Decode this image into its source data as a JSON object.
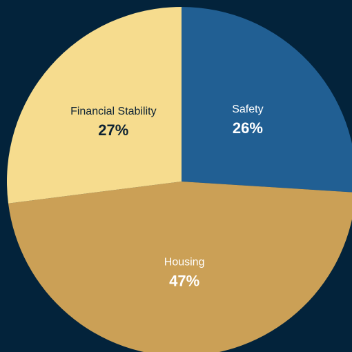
{
  "chart_data": {
    "type": "pie",
    "categories": [
      "Safety",
      "Housing",
      "Financial Stability"
    ],
    "values": [
      26,
      47,
      27
    ],
    "value_labels": [
      "26%",
      "47%",
      "27%"
    ],
    "colors": [
      "#215f93",
      "#cba056",
      "#f6dc8e"
    ]
  }
}
